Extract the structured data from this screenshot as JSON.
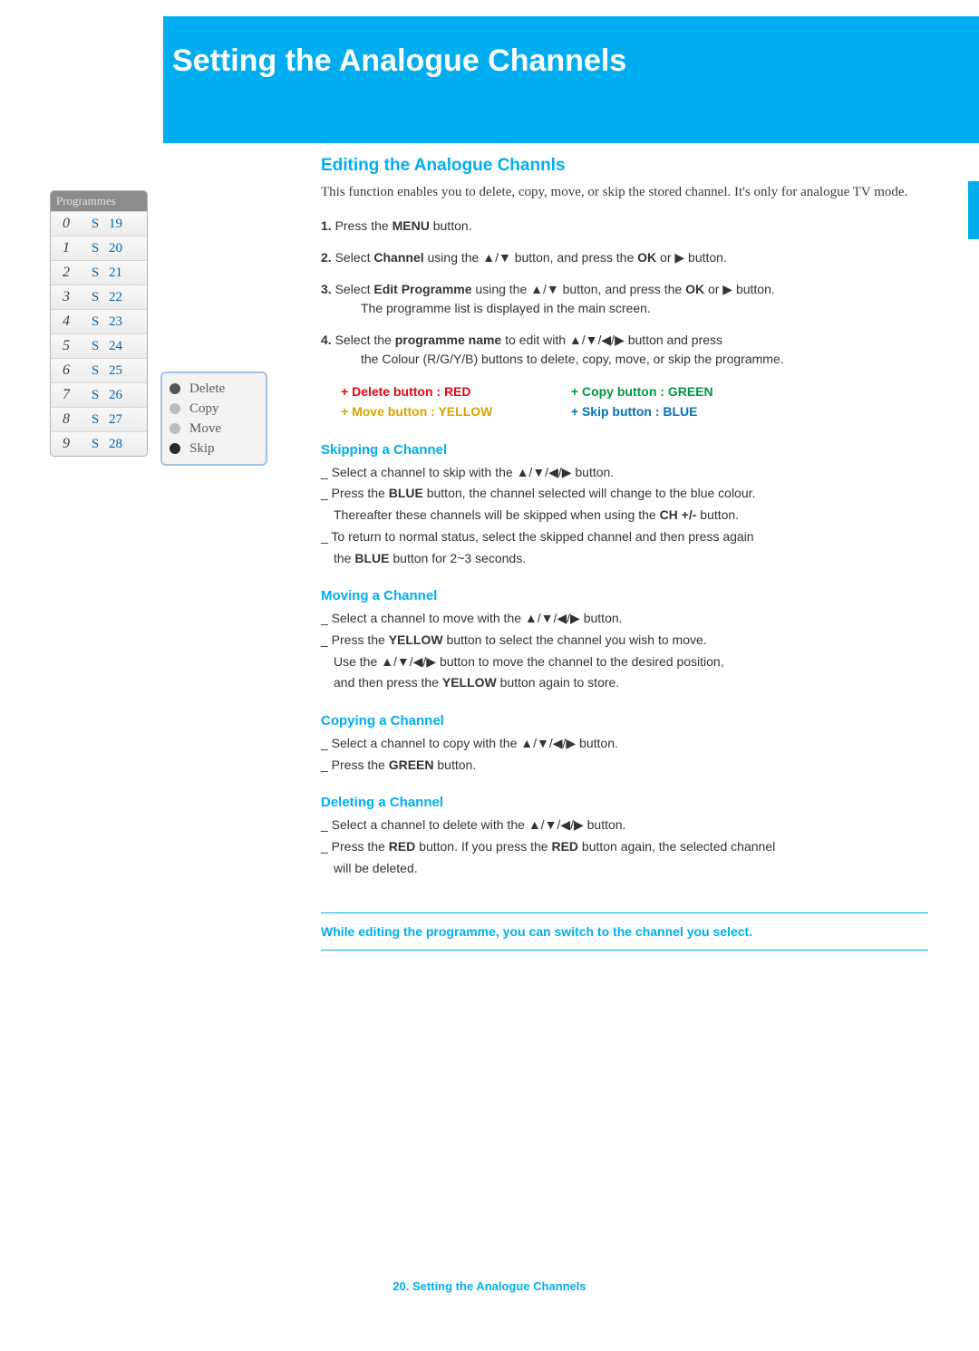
{
  "page": {
    "header_title": "Setting the Analogue Channels",
    "footer": "20. Setting the Analogue Channels"
  },
  "programmes": {
    "title": "Programmes",
    "rows": [
      {
        "idx": "0",
        "band": "S",
        "ch": "19"
      },
      {
        "idx": "1",
        "band": "S",
        "ch": "20"
      },
      {
        "idx": "2",
        "band": "S",
        "ch": "21"
      },
      {
        "idx": "3",
        "band": "S",
        "ch": "22"
      },
      {
        "idx": "4",
        "band": "S",
        "ch": "23"
      },
      {
        "idx": "5",
        "band": "S",
        "ch": "24"
      },
      {
        "idx": "6",
        "band": "S",
        "ch": "25"
      },
      {
        "idx": "7",
        "band": "S",
        "ch": "26"
      },
      {
        "idx": "8",
        "band": "S",
        "ch": "27"
      },
      {
        "idx": "9",
        "band": "S",
        "ch": "28"
      }
    ]
  },
  "legend": {
    "items": [
      {
        "label": "Delete",
        "color": "#555555"
      },
      {
        "label": "Copy",
        "color": "#bdbdbd"
      },
      {
        "label": "Move",
        "color": "#bdbdbd"
      },
      {
        "label": "Skip",
        "color": "#2a2a2a"
      }
    ]
  },
  "content": {
    "section_title": "Editing the Analogue Channls",
    "intro": "This function enables you to delete, copy, move, or skip the stored channel. It's only for analogue TV mode.",
    "steps": {
      "s1": {
        "num": "1.",
        "t1": "Press the ",
        "b1": "MENU",
        "t2": " button."
      },
      "s2": {
        "num": "2.",
        "t1": "Select ",
        "b1": "Channel",
        "t2": " using the ▲/▼ button, and press the ",
        "b2": "OK",
        "t3": " or ▶ button."
      },
      "s3": {
        "num": "3.",
        "t1": "Select ",
        "b1": "Edit Programme",
        "t2": " using the ▲/▼ button, and press the ",
        "b2": "OK",
        "t3": " or ▶ button.",
        "line2": "The programme list is displayed in the main screen."
      },
      "s4": {
        "num": "4.",
        "t1": "Select the ",
        "b1": "programme name",
        "t2": " to edit with ▲/▼/◀/▶ button and press",
        "line2": "the Colour (R/G/Y/B) buttons to delete, copy, move, or skip the programme."
      }
    },
    "color_buttons": {
      "delete": {
        "text": "+ Delete button : RED",
        "color": "#e30613"
      },
      "copy": {
        "text": "+ Copy button : GREEN",
        "color": "#009640"
      },
      "move": {
        "text": "+ Move button  : YELLOW",
        "color": "#d9a400"
      },
      "skip": {
        "text": "+ Skip button  : BLUE",
        "color": "#0072bc"
      }
    },
    "skipping": {
      "title": "Skipping a Channel",
      "l1": "_ Select a channel to skip with the ▲/▼/◀/▶ button.",
      "l2a": "_ Press the ",
      "l2b": "BLUE",
      "l2c": " button, the channel selected will change to the blue colour.",
      "l3a": "Thereafter these channels will be skipped when using the ",
      "l3b": "CH +/-",
      "l3c": " button.",
      "l4": "_ To return to normal status, select the skipped channel and then press again",
      "l5a": "the ",
      "l5b": "BLUE",
      "l5c": " button for 2~3 seconds."
    },
    "moving": {
      "title": "Moving a Channel",
      "l1": "_ Select a channel to move with the ▲/▼/◀/▶ button.",
      "l2a": "_ Press the ",
      "l2b": "YELLOW",
      "l2c": " button to select the channel you wish to move.",
      "l3": "Use the ▲/▼/◀/▶ button to move the channel to the desired position,",
      "l4a": "and then press the ",
      "l4b": "YELLOW",
      "l4c": " button again to store."
    },
    "copying": {
      "title": "Copying a Channel",
      "l1": "_ Select a channel to copy with the ▲/▼/◀/▶ button.",
      "l2a": "_ Press the ",
      "l2b": "GREEN",
      "l2c": " button."
    },
    "deleting": {
      "title": "Deleting a Channel",
      "l1": "_ Select a channel to delete with the ▲/▼/◀/▶ button.",
      "l2a": "_ Press the ",
      "l2b": "RED",
      "l2c": " button. If you press the ",
      "l2d": "RED",
      "l2e": " button again, the selected channel",
      "l3": "will be deleted."
    },
    "note": "While editing the programme, you can switch to the channel you select."
  },
  "colors": {
    "brand": "#00aeef"
  }
}
